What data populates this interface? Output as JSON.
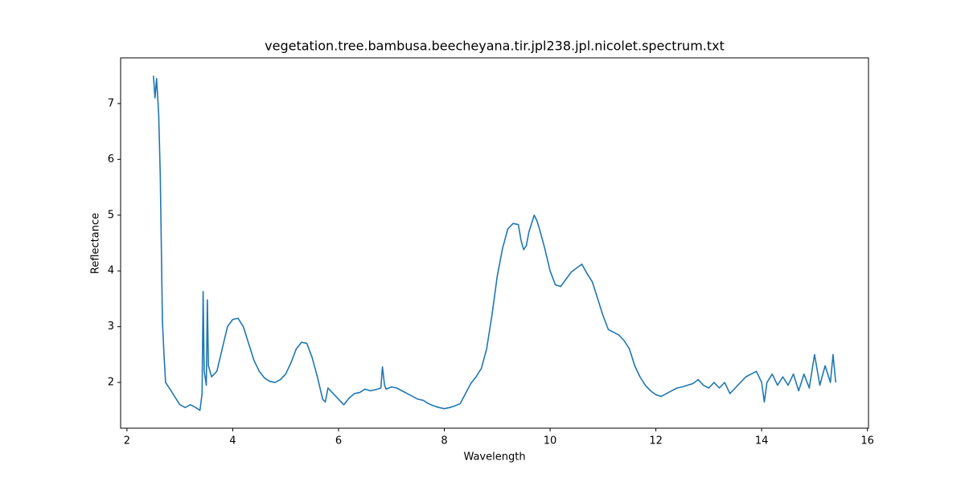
{
  "chart_data": {
    "type": "line",
    "title": "vegetation.tree.bambusa.beecheyana.tir.jpl238.jpl.nicolet.spectrum.txt",
    "x_label": "Wavelength",
    "y_label": "Reflectance",
    "color": "#1f77b4",
    "xlim": [
      1.88,
      16.02
    ],
    "ylim": [
      1.18,
      7.82
    ],
    "xticks": [
      2,
      4,
      6,
      8,
      10,
      12,
      14,
      16
    ],
    "yticks": [
      2,
      3,
      4,
      5,
      6,
      7
    ],
    "x": [
      2.5,
      2.53,
      2.56,
      2.6,
      2.63,
      2.67,
      2.7,
      2.73,
      2.8,
      2.9,
      3.0,
      3.1,
      3.2,
      3.3,
      3.38,
      3.42,
      3.44,
      3.46,
      3.5,
      3.52,
      3.54,
      3.6,
      3.7,
      3.8,
      3.9,
      4.0,
      4.1,
      4.2,
      4.3,
      4.4,
      4.5,
      4.6,
      4.7,
      4.8,
      4.9,
      5.0,
      5.1,
      5.2,
      5.3,
      5.4,
      5.5,
      5.6,
      5.7,
      5.75,
      5.8,
      5.9,
      6.0,
      6.1,
      6.2,
      6.3,
      6.4,
      6.5,
      6.6,
      6.7,
      6.8,
      6.83,
      6.87,
      6.9,
      7.0,
      7.1,
      7.2,
      7.3,
      7.4,
      7.5,
      7.6,
      7.7,
      7.8,
      7.9,
      8.0,
      8.1,
      8.2,
      8.3,
      8.4,
      8.5,
      8.6,
      8.7,
      8.8,
      8.9,
      9.0,
      9.1,
      9.2,
      9.3,
      9.4,
      9.45,
      9.5,
      9.55,
      9.6,
      9.7,
      9.75,
      9.8,
      9.9,
      10.0,
      10.1,
      10.2,
      10.3,
      10.4,
      10.5,
      10.6,
      10.7,
      10.8,
      10.9,
      11.0,
      11.1,
      11.2,
      11.3,
      11.4,
      11.5,
      11.6,
      11.7,
      11.8,
      11.9,
      12.0,
      12.1,
      12.2,
      12.3,
      12.4,
      12.5,
      12.6,
      12.7,
      12.8,
      12.9,
      13.0,
      13.1,
      13.2,
      13.3,
      13.4,
      13.5,
      13.6,
      13.7,
      13.8,
      13.9,
      14.0,
      14.05,
      14.1,
      14.2,
      14.3,
      14.4,
      14.5,
      14.6,
      14.7,
      14.8,
      14.9,
      15.0,
      15.1,
      15.2,
      15.3,
      15.35,
      15.4
    ],
    "values": [
      7.5,
      7.1,
      7.45,
      6.8,
      5.7,
      3.1,
      2.5,
      2.0,
      1.9,
      1.75,
      1.6,
      1.55,
      1.6,
      1.55,
      1.5,
      1.8,
      3.63,
      2.2,
      1.95,
      3.48,
      2.3,
      2.1,
      2.2,
      2.6,
      3.0,
      3.13,
      3.15,
      3.0,
      2.7,
      2.4,
      2.2,
      2.08,
      2.02,
      2.0,
      2.05,
      2.15,
      2.35,
      2.6,
      2.72,
      2.7,
      2.45,
      2.1,
      1.7,
      1.65,
      1.9,
      1.8,
      1.7,
      1.6,
      1.72,
      1.8,
      1.82,
      1.88,
      1.85,
      1.87,
      1.9,
      2.28,
      1.95,
      1.88,
      1.92,
      1.9,
      1.85,
      1.8,
      1.75,
      1.7,
      1.68,
      1.62,
      1.58,
      1.55,
      1.53,
      1.55,
      1.58,
      1.62,
      1.8,
      1.98,
      2.1,
      2.25,
      2.6,
      3.2,
      3.9,
      4.4,
      4.75,
      4.85,
      4.83,
      4.55,
      4.38,
      4.45,
      4.7,
      5.0,
      4.9,
      4.75,
      4.4,
      4.0,
      3.75,
      3.72,
      3.85,
      3.98,
      4.05,
      4.12,
      3.95,
      3.8,
      3.5,
      3.2,
      2.95,
      2.9,
      2.85,
      2.75,
      2.6,
      2.3,
      2.1,
      1.95,
      1.85,
      1.78,
      1.75,
      1.8,
      1.85,
      1.9,
      1.92,
      1.95,
      1.98,
      2.05,
      1.95,
      1.9,
      2.0,
      1.9,
      2.0,
      1.8,
      1.9,
      2.0,
      2.1,
      2.15,
      2.2,
      2.0,
      1.65,
      2.0,
      2.15,
      1.95,
      2.1,
      1.95,
      2.15,
      1.85,
      2.15,
      1.9,
      2.5,
      1.95,
      2.3,
      2.0,
      2.5,
      2.0
    ]
  }
}
